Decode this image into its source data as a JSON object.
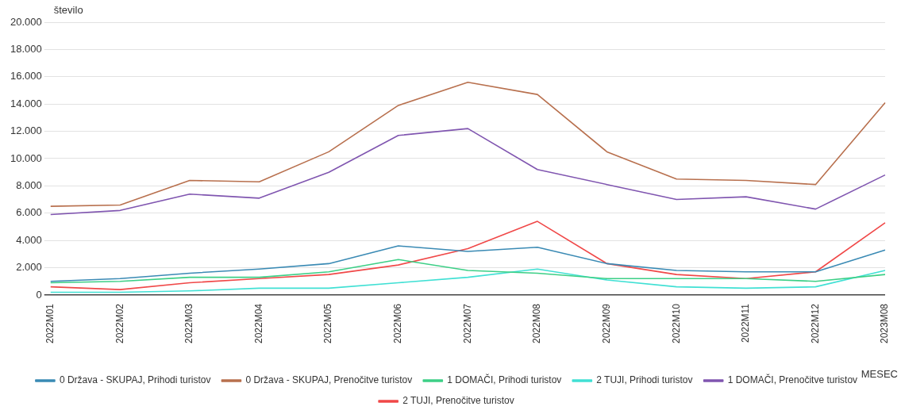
{
  "chart_data": {
    "type": "line",
    "ylabel": "število",
    "xlabel": "MESEC",
    "categories": [
      "2022M01",
      "2022M02",
      "2022M03",
      "2022M04",
      "2022M05",
      "2022M06",
      "2022M07",
      "2022M08",
      "2022M09",
      "2022M10",
      "2022M11",
      "2022M12",
      "2023M08"
    ],
    "series": [
      {
        "name": "0 Država - SKUPAJ, Prihodi turistov",
        "color": "#3a8ab4",
        "values": [
          1000,
          1200,
          1600,
          1900,
          2300,
          3600,
          3200,
          3500,
          2300,
          1800,
          1700,
          1700,
          3300
        ]
      },
      {
        "name": "0 Država - SKUPAJ, Prenočitve turistov",
        "color": "#b8704e",
        "values": [
          6500,
          6600,
          8400,
          8300,
          10500,
          13900,
          15600,
          14700,
          10500,
          8500,
          8400,
          8100,
          14100
        ]
      },
      {
        "name": "1 DOMAČI, Prihodi turistov",
        "color": "#3ccf86",
        "values": [
          900,
          1000,
          1300,
          1300,
          1700,
          2600,
          1800,
          1600,
          1200,
          1200,
          1200,
          1000,
          1500
        ]
      },
      {
        "name": "2 TUJI, Prihodi turistov",
        "color": "#40e0d4",
        "values": [
          200,
          200,
          300,
          500,
          500,
          900,
          1300,
          1900,
          1100,
          600,
          500,
          600,
          1800
        ]
      },
      {
        "name": "1 DOMAČI, Prenočitve turistov",
        "color": "#8056b0",
        "values": [
          5900,
          6200,
          7400,
          7100,
          9000,
          11700,
          12200,
          9200,
          8100,
          7000,
          7200,
          6300,
          8800
        ]
      },
      {
        "name": "2 TUJI, Prenočitve turistov",
        "color": "#f04848",
        "values": [
          600,
          400,
          900,
          1200,
          1500,
          2200,
          3400,
          5400,
          2300,
          1500,
          1200,
          1700,
          5300
        ]
      }
    ],
    "ylim": [
      0,
      20000
    ],
    "yticks": [
      {
        "value": 0,
        "label": "0"
      },
      {
        "value": 2000,
        "label": "2.000"
      },
      {
        "value": 4000,
        "label": "4.000"
      },
      {
        "value": 6000,
        "label": "6.000"
      },
      {
        "value": 8000,
        "label": "8.000"
      },
      {
        "value": 10000,
        "label": "10.000"
      },
      {
        "value": 12000,
        "label": "12.000"
      },
      {
        "value": 14000,
        "label": "14.000"
      },
      {
        "value": 16000,
        "label": "16.000"
      },
      {
        "value": 18000,
        "label": "18.000"
      },
      {
        "value": 20000,
        "label": "20.000"
      }
    ],
    "grid": "y",
    "legend": "bottom",
    "marker": "none",
    "line_style": "solid"
  }
}
